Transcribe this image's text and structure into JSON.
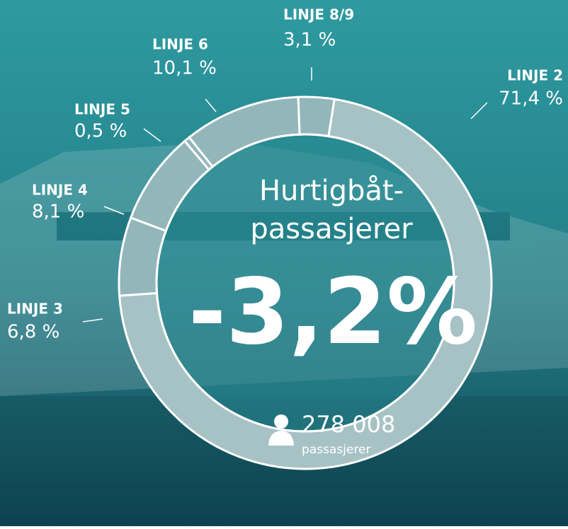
{
  "chart_data": {
    "type": "donut",
    "categories": [
      "LINJE 2",
      "LINJE 3",
      "LINJE 4",
      "LINJE 5",
      "LINJE 6",
      "LINJE 8/9"
    ],
    "values": [
      71.4,
      6.8,
      8.1,
      0.5,
      10.1,
      3.1
    ],
    "value_labels": [
      "71,4 %",
      "6,8 %",
      "8,1 %",
      "0,5 %",
      "10,1 %",
      "3,1 %"
    ],
    "colors": [
      "#a7c2c5",
      "#93b6ba",
      "#93b6ba",
      "#93b6ba",
      "#93b6ba",
      "#93b6ba"
    ],
    "center": {
      "title_lines": [
        "Hurtigbåt-",
        "passasjerer"
      ],
      "change": "-3,2%",
      "count": "278 008",
      "count_unit": "passasjerer"
    }
  }
}
